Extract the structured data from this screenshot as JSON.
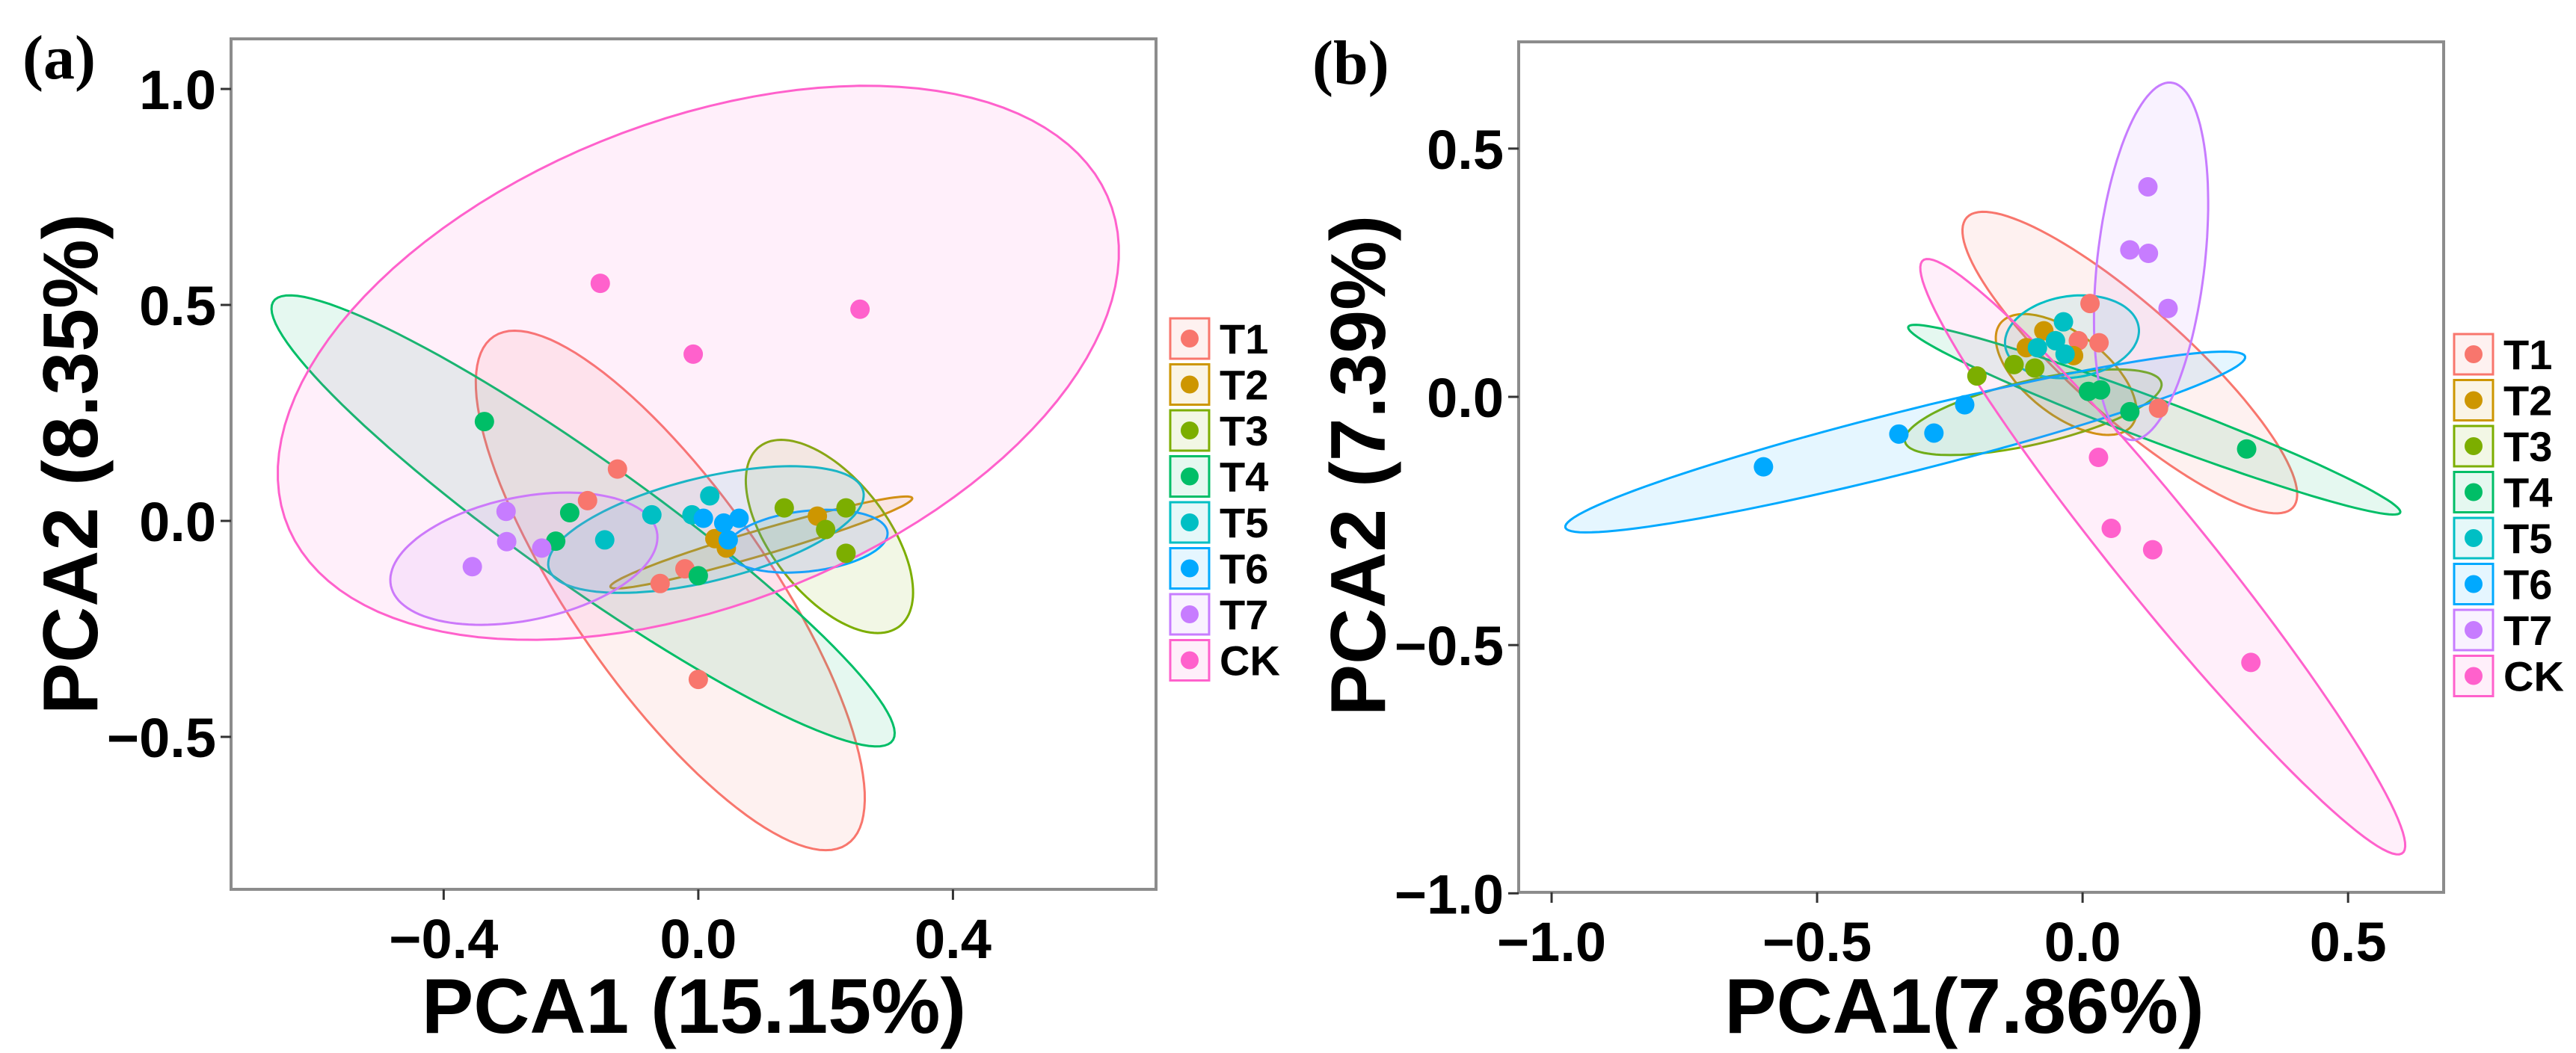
{
  "groups": [
    "T1",
    "T2",
    "T3",
    "T4",
    "T5",
    "T6",
    "T7",
    "CK"
  ],
  "colors": {
    "T1": "#F8766D",
    "T2": "#CD9600",
    "T3": "#7CAE00",
    "T4": "#00BE67",
    "T5": "#00BFC4",
    "T6": "#00A9FF",
    "T7": "#C77CFF",
    "CK": "#FF61CC"
  },
  "chart_data": [
    {
      "type": "scatter",
      "panel_label": "(a)",
      "xlabel": "PCA1 (15.15%)",
      "ylabel": "PCA2 (8.35%)",
      "xlim": [
        -0.734,
        0.719
      ],
      "ylim": [
        -0.853,
        1.116
      ],
      "xticks": [
        -0.4,
        0.0,
        0.4
      ],
      "xtick_labels": [
        "−0.4",
        "0.0",
        "0.4"
      ],
      "yticks": [
        1.0,
        0.5,
        0.0,
        -0.5
      ],
      "ytick_labels": [
        "1.0",
        "0.5",
        "0.0",
        "−0.5"
      ],
      "legend": "right",
      "grid": false,
      "series": [
        {
          "name": "T1",
          "points": [
            [
              -0.127,
              0.12
            ],
            [
              -0.174,
              0.047
            ],
            [
              -0.021,
              -0.111
            ],
            [
              -0.06,
              -0.145
            ],
            [
              0.0,
              -0.367
            ]
          ],
          "ellipse": {
            "center": [
              -0.044,
              -0.161
            ],
            "u": [
              0.27,
              -0.594
            ],
            "v": [
              -0.143,
              -0.094
            ]
          }
        },
        {
          "name": "T2",
          "points": [
            [
              0.026,
              -0.041
            ],
            [
              0.044,
              -0.063
            ],
            [
              0.187,
              0.011
            ]
          ],
          "ellipse": {
            "center": [
              0.099,
              -0.05
            ],
            "u": [
              0.237,
              0.103
            ],
            "v": [
              0.008,
              -0.027
            ]
          }
        },
        {
          "name": "T3",
          "points": [
            [
              0.135,
              0.03
            ],
            [
              0.232,
              0.03
            ],
            [
              0.2,
              -0.02
            ],
            [
              0.232,
              -0.075
            ]
          ],
          "ellipse": {
            "center": [
              0.206,
              -0.036
            ],
            "u": [
              0.101,
              -0.216
            ],
            "v": [
              -0.084,
              -0.058
            ]
          }
        },
        {
          "name": "T4",
          "points": [
            [
              -0.336,
              0.23
            ],
            [
              -0.202,
              0.019
            ],
            [
              -0.224,
              -0.047
            ],
            [
              0.0,
              -0.127
            ]
          ],
          "ellipse": {
            "center": [
              -0.181,
              0.0
            ],
            "u": [
              0.484,
              -0.5125
            ],
            "v": [
              -0.073,
              -0.1
            ]
          }
        },
        {
          "name": "T5",
          "points": [
            [
              -0.147,
              -0.044
            ],
            [
              -0.073,
              0.014
            ],
            [
              0.018,
              0.058
            ],
            [
              -0.01,
              0.014
            ]
          ],
          "ellipse": {
            "center": [
              0.012,
              -0.02
            ],
            "u": [
              0.246,
              0.094
            ],
            "v": [
              0.03,
              -0.1125
            ]
          }
        },
        {
          "name": "T6",
          "points": [
            [
              0.008,
              0.006
            ],
            [
              0.04,
              -0.005
            ],
            [
              0.064,
              0.006
            ],
            [
              0.047,
              -0.044
            ]
          ],
          "ellipse": {
            "center": [
              0.171,
              -0.047
            ],
            "u": [
              0.126,
              0.023
            ],
            "v": [
              0.009,
              -0.069
            ]
          }
        },
        {
          "name": "T7",
          "points": [
            [
              -0.302,
              0.022
            ],
            [
              -0.301,
              -0.048
            ],
            [
              -0.246,
              -0.063
            ],
            [
              -0.355,
              -0.106
            ]
          ],
          "ellipse": {
            "center": [
              -0.274,
              -0.0875
            ],
            "u": [
              0.2075,
              0.0703
            ],
            "v": [
              0.031,
              -0.136
            ]
          }
        },
        {
          "name": "CK",
          "points": [
            [
              -0.154,
              0.55
            ],
            [
              0.254,
              0.49
            ],
            [
              -0.008,
              0.386
            ]
          ],
          "ellipse": {
            "center": [
              0.0,
              0.366
            ],
            "u": [
              0.623,
              0.4375
            ],
            "v": [
              0.22,
              -0.469
            ]
          }
        }
      ]
    },
    {
      "type": "scatter",
      "panel_label": "(b)",
      "xlabel": "PCA1(7.86%)",
      "ylabel": "PCA2 (7.39%)",
      "xlim": [
        -1.062,
        0.68
      ],
      "ylim": [
        -0.998,
        0.715
      ],
      "xticks": [
        -1.0,
        -0.5,
        0.0,
        0.5
      ],
      "xtick_labels": [
        "−1.0",
        "−0.5",
        "0.0",
        "0.5"
      ],
      "yticks": [
        0.5,
        0.0,
        -0.5,
        -1.0
      ],
      "ytick_labels": [
        "0.5",
        "0.0",
        "−0.5",
        "−1.0"
      ],
      "legend": "right",
      "grid": false,
      "series": [
        {
          "name": "T1",
          "points": [
            [
              0.014,
              0.188
            ],
            [
              0.031,
              0.109
            ],
            [
              -0.008,
              0.113
            ],
            [
              0.143,
              -0.023
            ]
          ],
          "ellipse": {
            "center": [
              0.089,
              0.069
            ],
            "u": [
              0.303,
              -0.296
            ],
            "v": [
              -0.087,
              -0.068
            ]
          }
        },
        {
          "name": "T2",
          "points": [
            [
              -0.073,
              0.133
            ],
            [
              -0.106,
              0.099
            ],
            [
              -0.017,
              0.083
            ]
          ],
          "ellipse": {
            "center": [
              -0.031,
              0.045
            ],
            "u": [
              0.116,
              -0.111
            ],
            "v": [
              -0.064,
              -0.05
            ]
          }
        },
        {
          "name": "T3",
          "points": [
            [
              -0.199,
              0.042
            ],
            [
              -0.129,
              0.065
            ],
            [
              -0.09,
              0.058
            ]
          ],
          "ellipse": {
            "center": [
              -0.093,
              -0.031
            ],
            "u": [
              0.241,
              0.061
            ],
            "v": [
              0.02,
              -0.061
            ]
          }
        },
        {
          "name": "T4",
          "points": [
            [
              0.034,
              0.014
            ],
            [
              0.089,
              -0.03
            ],
            [
              0.309,
              -0.105
            ],
            [
              0.011,
              0.011
            ]
          ],
          "ellipse": {
            "center": [
              0.135,
              -0.046
            ],
            "u": [
              0.463,
              -0.1875
            ],
            "v": [
              -0.02,
              -0.037
            ]
          }
        },
        {
          "name": "T5",
          "points": [
            [
              -0.036,
              0.151
            ],
            [
              -0.051,
              0.113
            ],
            [
              -0.085,
              0.099
            ],
            [
              -0.033,
              0.086
            ]
          ],
          "ellipse": {
            "center": [
              -0.02,
              0.121
            ],
            "u": [
              0.124,
              0.027
            ],
            "v": [
              0.023,
              -0.079
            ]
          }
        },
        {
          "name": "T6",
          "points": [
            [
              -0.601,
              -0.141
            ],
            [
              -0.346,
              -0.075
            ],
            [
              -0.28,
              -0.073
            ],
            [
              -0.222,
              -0.016
            ]
          ],
          "ellipse": {
            "center": [
              -0.334,
              -0.091
            ],
            "u": [
              0.64,
              0.1726
            ],
            "v": [
              0.02,
              -0.058
            ]
          }
        },
        {
          "name": "T7",
          "points": [
            [
              0.123,
              0.423
            ],
            [
              0.089,
              0.296
            ],
            [
              0.124,
              0.289
            ],
            [
              0.161,
              0.178
            ]
          ],
          "ellipse": {
            "center": [
              0.129,
              0.273
            ],
            "u": [
              0.037,
              0.36
            ],
            "v": [
              0.101,
              -0.008
            ]
          }
        },
        {
          "name": "CK",
          "points": [
            [
              0.03,
              -0.122
            ],
            [
              0.054,
              -0.265
            ],
            [
              0.132,
              -0.308
            ],
            [
              0.317,
              -0.535
            ]
          ],
          "ellipse": {
            "center": [
              0.151,
              -0.322
            ],
            "u": [
              0.45,
              -0.598
            ],
            "v": [
              -0.078,
              -0.045
            ]
          }
        }
      ]
    }
  ]
}
